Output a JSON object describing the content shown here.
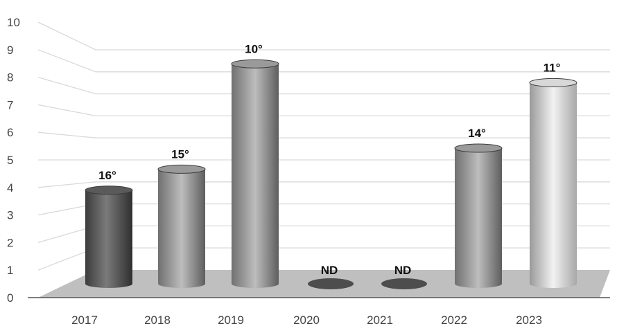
{
  "chart_data": {
    "type": "bar",
    "categories": [
      "2017",
      "2018",
      "2019",
      "2020",
      "2021",
      "2022",
      "2023"
    ],
    "values": [
      4,
      4.9,
      9.4,
      null,
      null,
      5.8,
      8.6
    ],
    "data_labels": [
      "16°",
      "15°",
      "10°",
      "ND",
      "ND",
      "14°",
      "11°"
    ],
    "y_ticks": [
      "0",
      "1",
      "2",
      "3",
      "4",
      "5",
      "6",
      "7",
      "8",
      "9",
      "10"
    ],
    "ylim": [
      0,
      10
    ],
    "grid": true,
    "style": "3d-cylinder",
    "colors": {
      "grid": "#d9d9d9",
      "floor": "#bfbfbf",
      "axis": "#555555"
    },
    "bar_tones": [
      "dark",
      "mid",
      "mid",
      "dark",
      "dark",
      "mid",
      "light"
    ]
  }
}
